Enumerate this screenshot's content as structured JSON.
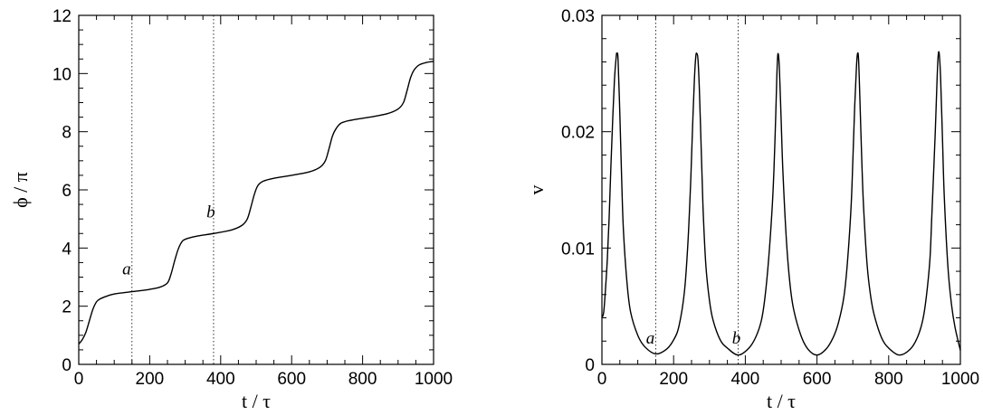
{
  "chart_data": [
    {
      "type": "line",
      "xlabel": "t / τ",
      "ylabel": "ϕ / π",
      "xlim": [
        0,
        1000
      ],
      "ylim": [
        0,
        12
      ],
      "xticks": [
        0,
        200,
        400,
        600,
        800,
        1000
      ],
      "yticks": [
        0,
        2,
        4,
        6,
        8,
        10,
        12
      ],
      "xtick_labels": [
        "0",
        "200",
        "400",
        "600",
        "800",
        "1000"
      ],
      "ytick_labels": [
        "0",
        "2",
        "4",
        "6",
        "8",
        "10",
        "12"
      ],
      "grid": false,
      "reference_lines": [
        150,
        380
      ],
      "annotations": [
        {
          "text": "a",
          "x": 135,
          "y": 3.1
        },
        {
          "text": "b",
          "x": 372,
          "y": 5.05
        }
      ],
      "series": [
        {
          "x": [
            0,
            10,
            20,
            30,
            40,
            50,
            60,
            80,
            100,
            150,
            200,
            230,
            250,
            260,
            270,
            280,
            290,
            300,
            330,
            380,
            430,
            460,
            475,
            485,
            495,
            505,
            520,
            550,
            600,
            650,
            680,
            695,
            705,
            715,
            725,
            740,
            770,
            820,
            870,
            900,
            915,
            925,
            935,
            945,
            960,
            980,
            1000
          ],
          "values": [
            0.7,
            0.85,
            1.1,
            1.5,
            1.9,
            2.15,
            2.25,
            2.35,
            2.42,
            2.5,
            2.58,
            2.66,
            2.8,
            3.1,
            3.55,
            3.95,
            4.2,
            4.3,
            4.4,
            4.5,
            4.62,
            4.78,
            5.0,
            5.4,
            5.85,
            6.15,
            6.3,
            6.4,
            6.5,
            6.62,
            6.78,
            7.0,
            7.4,
            7.85,
            8.1,
            8.3,
            8.4,
            8.5,
            8.62,
            8.78,
            9.0,
            9.4,
            9.85,
            10.12,
            10.3,
            10.38,
            10.42
          ]
        }
      ]
    },
    {
      "type": "line",
      "xlabel": "t / τ",
      "ylabel": "v",
      "xlim": [
        0,
        1000
      ],
      "ylim": [
        0,
        0.03
      ],
      "xticks": [
        0,
        200,
        400,
        600,
        800,
        1000
      ],
      "yticks": [
        0,
        0.01,
        0.02,
        0.03
      ],
      "xtick_labels": [
        "0",
        "200",
        "400",
        "600",
        "800",
        "1000"
      ],
      "ytick_labels": [
        "0",
        "0.01",
        "0.02",
        "0.03"
      ],
      "grid": false,
      "reference_lines": [
        150,
        380
      ],
      "annotations": [
        {
          "text": "a",
          "x": 135,
          "y": 0.0018
        },
        {
          "text": "b",
          "x": 375,
          "y": 0.0018
        }
      ],
      "series": [
        {
          "x": [
            0,
            5,
            10,
            15,
            20,
            25,
            30,
            35,
            40,
            42,
            45,
            50,
            55,
            60,
            70,
            80,
            100,
            120,
            150,
            180,
            200,
            215,
            230,
            240,
            248,
            253,
            258,
            262,
            265,
            268,
            272,
            277,
            282,
            290,
            300,
            310,
            330,
            350,
            380,
            410,
            430,
            445,
            455,
            465,
            475,
            480,
            485,
            488,
            491,
            495,
            500,
            505,
            515,
            525,
            535,
            555,
            575,
            600,
            625,
            645,
            660,
            675,
            685,
            695,
            700,
            705,
            710,
            713,
            716,
            720,
            725,
            730,
            740,
            750,
            760,
            780,
            800,
            830,
            860,
            880,
            895,
            905,
            915,
            920,
            925,
            930,
            935,
            938,
            941,
            945,
            950,
            955,
            965,
            975,
            985,
            1000
          ],
          "values": [
            0.004,
            0.0045,
            0.0065,
            0.009,
            0.0125,
            0.017,
            0.021,
            0.0245,
            0.0265,
            0.0267,
            0.0262,
            0.0215,
            0.016,
            0.0115,
            0.007,
            0.0045,
            0.0025,
            0.0015,
            0.0009,
            0.0013,
            0.0021,
            0.0033,
            0.0062,
            0.0105,
            0.016,
            0.0205,
            0.0245,
            0.0265,
            0.0267,
            0.0262,
            0.0235,
            0.0185,
            0.0135,
            0.0085,
            0.0055,
            0.0038,
            0.0021,
            0.0014,
            0.0008,
            0.0014,
            0.0024,
            0.0038,
            0.0058,
            0.009,
            0.0135,
            0.0168,
            0.0215,
            0.0248,
            0.0267,
            0.0255,
            0.021,
            0.0165,
            0.0105,
            0.0068,
            0.0047,
            0.0025,
            0.0013,
            0.0008,
            0.0013,
            0.0023,
            0.0036,
            0.0058,
            0.0088,
            0.0135,
            0.0175,
            0.022,
            0.0255,
            0.0267,
            0.0262,
            0.0225,
            0.0175,
            0.0135,
            0.0085,
            0.0058,
            0.0042,
            0.0023,
            0.0014,
            0.0008,
            0.0013,
            0.0023,
            0.0038,
            0.0058,
            0.009,
            0.0125,
            0.0162,
            0.02,
            0.0245,
            0.0265,
            0.0267,
            0.0245,
            0.0195,
            0.0145,
            0.0085,
            0.0052,
            0.0032,
            0.0012
          ]
        }
      ]
    }
  ]
}
